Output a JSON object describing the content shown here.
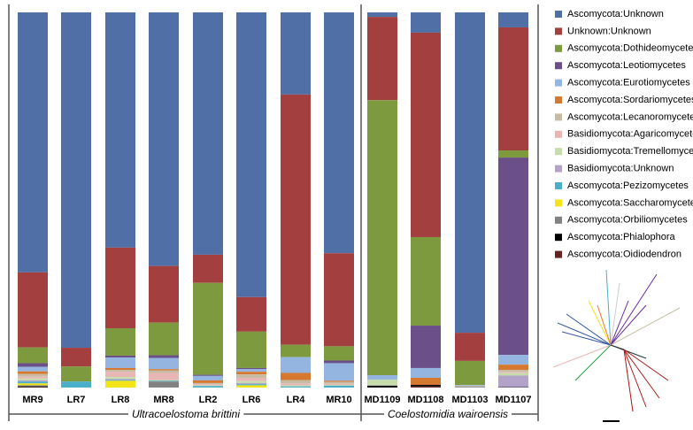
{
  "chart_data": {
    "type": "bar",
    "stacked": true,
    "ylim": [
      0,
      100
    ],
    "categories": [
      "MR9",
      "LR7",
      "LR8",
      "MR8",
      "LR2",
      "LR6",
      "LR4",
      "MR10",
      "MD1109",
      "MD1108",
      "MD1103",
      "MD1107"
    ],
    "groups": [
      {
        "name": "Ultracoelostoma brittini",
        "members": [
          "MR9",
          "LR7",
          "LR8",
          "MR8",
          "LR2",
          "LR6",
          "LR4",
          "MR10"
        ]
      },
      {
        "name": "Coelostomidia wairoensis",
        "members": [
          "MD1109",
          "MD1108",
          "MD1103",
          "MD1107"
        ]
      }
    ],
    "series": [
      {
        "name": "Ascomycota:Unknown",
        "color": "#4f6fa6",
        "values": [
          69.3,
          89.4,
          62.7,
          67.6,
          64.6,
          75.9,
          21.9,
          64.2,
          1.2,
          5.4,
          85.4,
          4
        ]
      },
      {
        "name": "Unknown:Unknown",
        "color": "#a33f3f",
        "values": [
          20,
          5,
          21.5,
          15.1,
          7.5,
          9.2,
          66.7,
          24.8,
          22.2,
          54.5,
          7.5,
          32.8
        ]
      },
      {
        "name": "Ascomycota:Dothideomycetes",
        "color": "#7e9a3f",
        "values": [
          4.2,
          4,
          7.3,
          8.7,
          24.5,
          9.7,
          3.3,
          3.8,
          73.3,
          23.6,
          6.4,
          1.9
        ]
      },
      {
        "name": "Ascomycota:Leotiomycetes",
        "color": "#6a4f88",
        "values": [
          1,
          0,
          0.5,
          0.7,
          0.3,
          0.3,
          0,
          0.7,
          0,
          11.3,
          0,
          52.6
        ]
      },
      {
        "name": "Ascomycota:Eurotiomycetes",
        "color": "#93b5e0",
        "values": [
          1.2,
          0,
          2.8,
          3,
          1.2,
          0.7,
          4.2,
          4.7,
          1.2,
          2.6,
          0.2,
          2.6
        ]
      },
      {
        "name": "Ascomycota:Sordariomycetes",
        "color": "#d6782f",
        "values": [
          0.7,
          0,
          0.5,
          0.3,
          0.7,
          0.7,
          1.9,
          0.3,
          0,
          1.9,
          0,
          1.4
        ]
      },
      {
        "name": "Ascomycota:Lecanoromycetes",
        "color": "#c7bca3",
        "values": [
          0.7,
          0,
          0.5,
          0.7,
          0.3,
          0.9,
          0.9,
          0.5,
          0,
          0,
          0.3,
          0.5
        ]
      },
      {
        "name": "Basidiomycota:Agaricomycetes",
        "color": "#e8b6b4",
        "values": [
          0.5,
          0,
          1.4,
          1.9,
          0.3,
          0.9,
          0.5,
          0.3,
          0,
          0,
          0,
          0.3
        ]
      },
      {
        "name": "Basidiomycota:Tremellomycetes",
        "color": "#c6dcaa",
        "values": [
          0.5,
          0,
          0.5,
          0.2,
          0.2,
          0.5,
          0.3,
          0.2,
          1.6,
          0,
          0,
          0.7
        ]
      },
      {
        "name": "Basidiomycota:Unknown",
        "color": "#b3a3c8",
        "values": [
          0.3,
          0,
          0.3,
          0,
          0,
          0.3,
          0,
          0,
          0,
          0,
          0,
          3.1
        ]
      },
      {
        "name": "Ascomycota:Pezizomycetes",
        "color": "#4aaec8",
        "values": [
          0.5,
          1.6,
          0.2,
          0.2,
          0.4,
          0.3,
          0.3,
          0.5,
          0,
          0,
          0,
          0
        ]
      },
      {
        "name": "Ascomycota:Saccharomycetes",
        "color": "#f2e419",
        "values": [
          0.5,
          0,
          1.8,
          0,
          0,
          0.6,
          0,
          0,
          0,
          0,
          0,
          0
        ]
      },
      {
        "name": "Ascomycota:Orbiliomycetes",
        "color": "#828282",
        "values": [
          0.3,
          0,
          0,
          1.6,
          0,
          0,
          0,
          0,
          0,
          0,
          0.2,
          0
        ]
      },
      {
        "name": "Ascomycota:Phialophora",
        "color": "#000000",
        "values": [
          0.2,
          0,
          0,
          0,
          0,
          0,
          0,
          0,
          0.5,
          0.4,
          0,
          0.1
        ]
      },
      {
        "name": "Ascomycota:Oidiodendron",
        "color": "#632523",
        "values": [
          0.1,
          0,
          0,
          0,
          0,
          0,
          0,
          0,
          0,
          0.3,
          0,
          0
        ]
      }
    ]
  }
}
